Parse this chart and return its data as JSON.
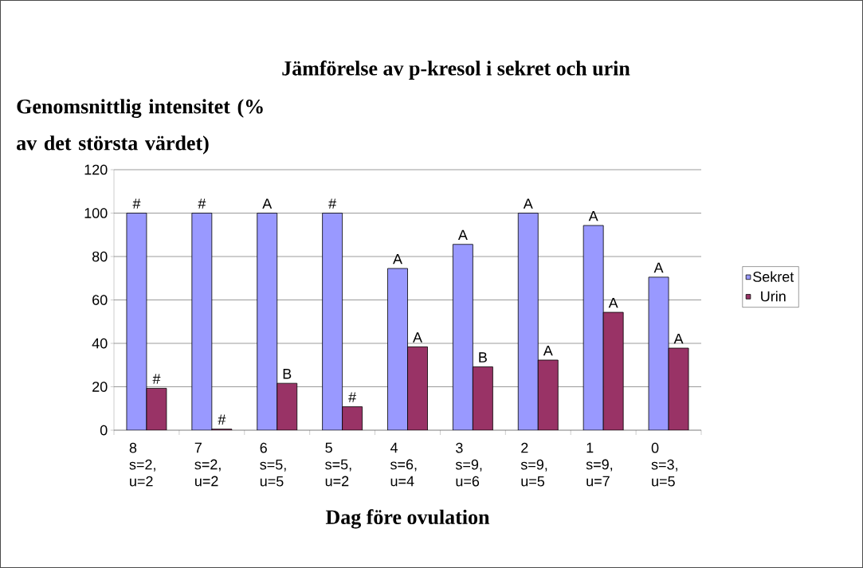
{
  "chart_data": {
    "type": "bar",
    "title": "Jämförelse av p-kresol i sekret och urin",
    "xlabel": "Dag före ovulation",
    "ylabel": "Genomsnittlig intensitet (% av det största värdet)",
    "categories": [
      "8 s=2, u=2",
      "7 s=2, u=2",
      "6 s=5, u=5",
      "5 s=5, u=2",
      "4 s=6, u=4",
      "3 s=9, u=6",
      "2 s=9, u=5",
      "1 s=9, u=7",
      "0 s=3, u=5"
    ],
    "series": [
      {
        "name": "Sekret",
        "color": "#9999ff",
        "values": [
          100,
          100,
          100,
          100,
          74.5,
          85.6,
          100,
          94.3,
          70.5
        ],
        "value_labels": [
          "#",
          "#",
          "A",
          "#",
          "A",
          "A",
          "A",
          "A",
          "A"
        ]
      },
      {
        "name": "Urin",
        "color": "#993366",
        "values": [
          19.3,
          0.5,
          21.6,
          10.8,
          38.4,
          29.2,
          32.3,
          54.3,
          37.8
        ],
        "value_labels": [
          "#",
          "#",
          "B",
          "#",
          "A",
          "B",
          "A",
          "A",
          "A"
        ]
      }
    ],
    "ylim": [
      0,
      120
    ],
    "yticks": [
      0,
      20,
      40,
      60,
      80,
      100,
      120
    ],
    "grid": "y",
    "legend": "right"
  }
}
